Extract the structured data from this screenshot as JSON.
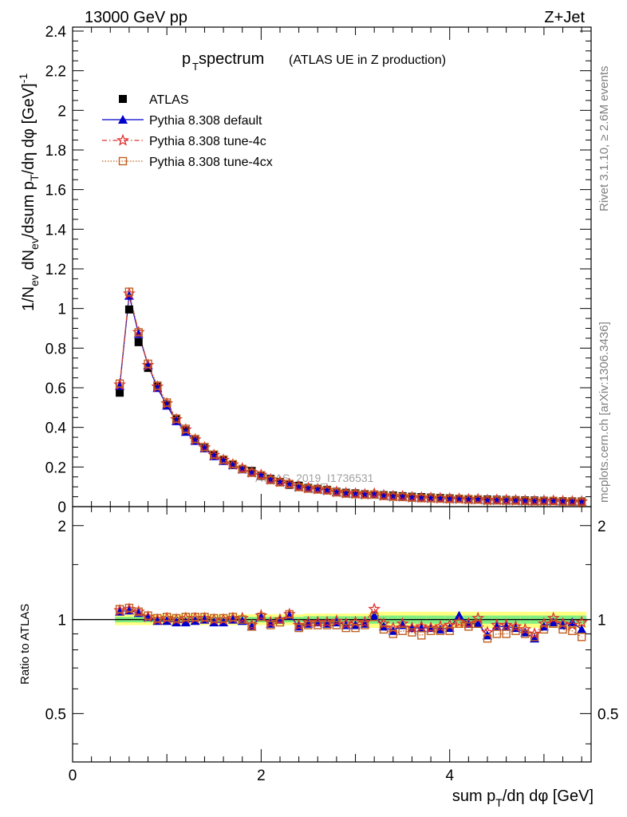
{
  "header": {
    "left_label": "13000 GeV pp",
    "right_label": "Z+Jet"
  },
  "side_labels": {
    "rivet": "Rivet 3.1.10, ≥ 2.6M events",
    "mcplots": "mcplots.cern.ch [arXiv:1306.3436]"
  },
  "watermark": "ATLAS_2019_I1736531",
  "chart_data": [
    {
      "type": "scatter",
      "title_main": "p",
      "title_sub": "T",
      "title_rest": " spectrum",
      "title_note": "(ATLAS UE in Z production)",
      "ylabel": "1/N_ev dN_ev/dsum p_T/dη dφ [GeV]^-1",
      "xlim": [
        0,
        5.5
      ],
      "ylim": [
        0,
        2.42
      ],
      "y_ticks": [
        "0",
        "0.2",
        "0.4",
        "0.6",
        "0.8",
        "1",
        "1.2",
        "1.4",
        "1.6",
        "1.8",
        "2",
        "2.2",
        "2.4"
      ],
      "y_tick_values": [
        0,
        0.2,
        0.4,
        0.6,
        0.8,
        1.0,
        1.2,
        1.4,
        1.6,
        1.8,
        2.0,
        2.2,
        2.4
      ],
      "legend_position": "top-left",
      "x": [
        0.5,
        0.6,
        0.7,
        0.8,
        0.9,
        1.0,
        1.1,
        1.2,
        1.3,
        1.4,
        1.5,
        1.6,
        1.7,
        1.8,
        1.9,
        2.0,
        2.1,
        2.2,
        2.3,
        2.4,
        2.5,
        2.6,
        2.7,
        2.8,
        2.9,
        3.0,
        3.1,
        3.2,
        3.3,
        3.4,
        3.5,
        3.6,
        3.7,
        3.8,
        3.9,
        4.0,
        4.1,
        4.2,
        4.3,
        4.4,
        4.5,
        4.6,
        4.7,
        4.8,
        4.9,
        5.0,
        5.1,
        5.2,
        5.3,
        5.4
      ],
      "series": [
        {
          "name": "ATLAS",
          "marker": "square-filled",
          "color": "#000000",
          "values": [
            0.575,
            0.995,
            0.83,
            0.7,
            0.605,
            0.515,
            0.44,
            0.385,
            0.335,
            0.295,
            0.26,
            0.235,
            0.21,
            0.19,
            0.18,
            0.155,
            0.14,
            0.125,
            0.11,
            0.105,
            0.095,
            0.09,
            0.085,
            0.075,
            0.07,
            0.067,
            0.063,
            0.06,
            0.058,
            0.056,
            0.053,
            0.05,
            0.048,
            0.046,
            0.044,
            0.042,
            0.04,
            0.038,
            0.037,
            0.036,
            0.035,
            0.034,
            0.033,
            0.032,
            0.031,
            0.03,
            0.029,
            0.028,
            0.027,
            0.026
          ]
        },
        {
          "name": "Pythia 8.308 default",
          "marker": "triangle-filled",
          "color": "#0000cc",
          "ratio": [
            1.06,
            1.07,
            1.05,
            1.02,
            0.99,
            0.99,
            0.98,
            0.98,
            0.99,
            1.0,
            0.98,
            0.98,
            1.0,
            0.99,
            0.95,
            1.02,
            0.97,
            1.0,
            1.03,
            0.95,
            0.97,
            0.98,
            0.97,
            0.98,
            0.96,
            0.96,
            0.97,
            1.03,
            0.95,
            0.92,
            0.96,
            0.94,
            0.94,
            0.94,
            0.93,
            0.94,
            1.03,
            0.97,
            0.97,
            0.89,
            0.95,
            0.95,
            0.94,
            0.91,
            0.87,
            0.95,
            0.98,
            0.96,
            0.98,
            0.93
          ]
        },
        {
          "name": "Pythia 8.308 tune-4c",
          "marker": "star-open",
          "color": "#e03030",
          "ratio": [
            1.07,
            1.08,
            1.06,
            1.02,
            1.0,
            1.01,
            1.0,
            1.01,
            1.01,
            1.01,
            1.0,
            1.0,
            1.01,
            1.01,
            0.96,
            1.03,
            0.98,
            1.0,
            1.04,
            0.96,
            0.98,
            0.98,
            0.98,
            0.99,
            0.97,
            0.98,
            0.98,
            1.08,
            0.97,
            0.94,
            0.97,
            0.94,
            0.95,
            0.94,
            0.95,
            0.96,
            0.98,
            0.97,
            1.01,
            0.91,
            0.96,
            0.96,
            0.95,
            0.93,
            0.9,
            0.97,
            1.01,
            0.97,
            0.96,
            0.98
          ]
        },
        {
          "name": "Pythia 8.308 tune-4cx",
          "marker": "square-open",
          "color": "#c06020",
          "ratio": [
            1.08,
            1.09,
            1.06,
            1.03,
            1.01,
            1.02,
            1.01,
            1.02,
            1.02,
            1.02,
            1.01,
            1.01,
            1.02,
            1.0,
            0.95,
            1.02,
            0.96,
            0.98,
            1.04,
            0.94,
            0.96,
            0.96,
            0.96,
            0.96,
            0.94,
            0.94,
            0.96,
            1.02,
            0.93,
            0.9,
            0.92,
            0.91,
            0.89,
            0.92,
            0.92,
            0.92,
            0.97,
            0.95,
            0.97,
            0.87,
            0.9,
            0.9,
            0.92,
            0.9,
            0.88,
            0.93,
            0.97,
            0.93,
            0.92,
            0.88
          ]
        }
      ]
    },
    {
      "type": "scatter",
      "ylabel": "Ratio to ATLAS",
      "xlabel": "sum p_T/dη dφ [GeV]",
      "xlim": [
        0,
        5.5
      ],
      "ylim": [
        0.35,
        2.3
      ],
      "log_scale_y": true,
      "y_ticks": [
        "0.5",
        "1",
        "2"
      ],
      "y_tick_values": [
        0.5,
        1.0,
        2.0
      ],
      "x_ticks": [
        "0",
        "2",
        "4"
      ],
      "x_tick_values": [
        0,
        2,
        4
      ],
      "reference_line": 1.0,
      "band_inner_color": "#80ee80",
      "band_outer_color": "#ffff80",
      "band_inner_halfwidth": [
        0.02,
        0.02,
        0.02,
        0.02,
        0.02,
        0.02,
        0.02,
        0.02,
        0.02,
        0.02,
        0.02,
        0.02,
        0.02,
        0.02,
        0.02,
        0.02,
        0.02,
        0.02,
        0.02,
        0.02,
        0.025,
        0.025,
        0.025,
        0.025,
        0.025,
        0.025,
        0.025,
        0.03,
        0.03,
        0.03,
        0.03,
        0.03,
        0.03,
        0.03,
        0.03,
        0.03,
        0.03,
        0.03,
        0.03,
        0.03,
        0.03,
        0.03,
        0.03,
        0.03,
        0.03,
        0.03,
        0.03,
        0.03,
        0.03,
        0.03
      ],
      "band_outer_halfwidth": [
        0.04,
        0.04,
        0.04,
        0.04,
        0.04,
        0.04,
        0.04,
        0.04,
        0.04,
        0.04,
        0.04,
        0.04,
        0.04,
        0.04,
        0.04,
        0.04,
        0.04,
        0.04,
        0.04,
        0.04,
        0.045,
        0.045,
        0.045,
        0.045,
        0.045,
        0.045,
        0.045,
        0.06,
        0.06,
        0.06,
        0.06,
        0.06,
        0.06,
        0.06,
        0.06,
        0.06,
        0.06,
        0.06,
        0.06,
        0.06,
        0.06,
        0.06,
        0.06,
        0.06,
        0.06,
        0.06,
        0.06,
        0.06,
        0.06,
        0.06
      ]
    }
  ]
}
